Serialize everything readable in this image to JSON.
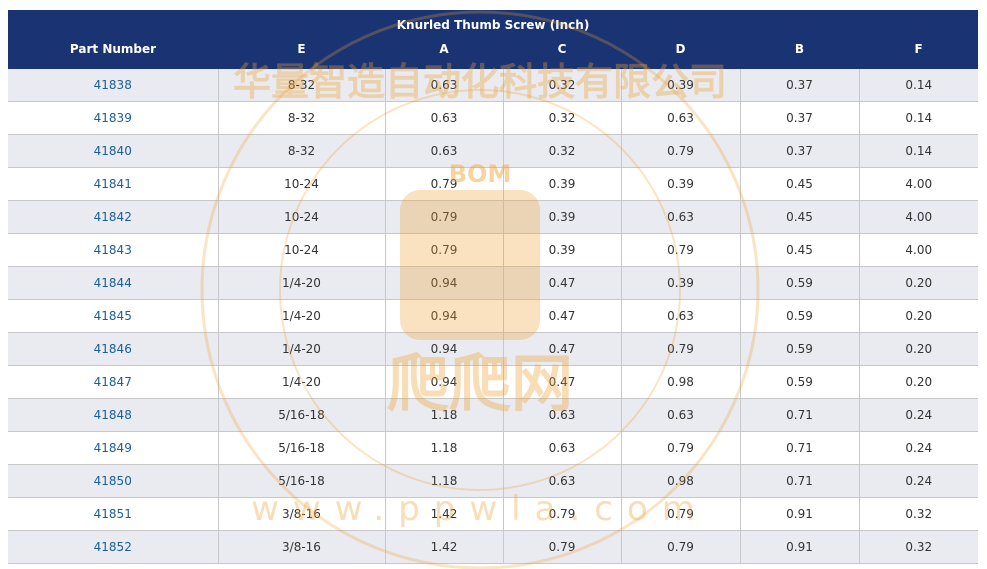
{
  "table": {
    "title": "Knurled Thumb Screw (Inch)",
    "columns": [
      "Part Number",
      "E",
      "A",
      "C",
      "D",
      "B",
      "F"
    ],
    "rows": [
      [
        "41838",
        "8-32",
        "0.63",
        "0.32",
        "0.39",
        "0.37",
        "0.14"
      ],
      [
        "41839",
        "8-32",
        "0.63",
        "0.32",
        "0.63",
        "0.37",
        "0.14"
      ],
      [
        "41840",
        "8-32",
        "0.63",
        "0.32",
        "0.79",
        "0.37",
        "0.14"
      ],
      [
        "41841",
        "10-24",
        "0.79",
        "0.39",
        "0.39",
        "0.45",
        "4.00"
      ],
      [
        "41842",
        "10-24",
        "0.79",
        "0.39",
        "0.63",
        "0.45",
        "4.00"
      ],
      [
        "41843",
        "10-24",
        "0.79",
        "0.39",
        "0.79",
        "0.45",
        "4.00"
      ],
      [
        "41844",
        "1/4-20",
        "0.94",
        "0.47",
        "0.39",
        "0.59",
        "0.20"
      ],
      [
        "41845",
        "1/4-20",
        "0.94",
        "0.47",
        "0.63",
        "0.59",
        "0.20"
      ],
      [
        "41846",
        "1/4-20",
        "0.94",
        "0.47",
        "0.79",
        "0.59",
        "0.20"
      ],
      [
        "41847",
        "1/4-20",
        "0.94",
        "0.47",
        "0.98",
        "0.59",
        "0.20"
      ],
      [
        "41848",
        "5/16-18",
        "1.18",
        "0.63",
        "0.63",
        "0.71",
        "0.24"
      ],
      [
        "41849",
        "5/16-18",
        "1.18",
        "0.63",
        "0.79",
        "0.71",
        "0.24"
      ],
      [
        "41850",
        "5/16-18",
        "1.18",
        "0.63",
        "0.98",
        "0.71",
        "0.24"
      ],
      [
        "41851",
        "3/8-16",
        "1.42",
        "0.79",
        "0.79",
        "0.91",
        "0.32"
      ],
      [
        "41852",
        "3/8-16",
        "1.42",
        "0.79",
        "0.79",
        "0.91",
        "0.32"
      ]
    ]
  },
  "watermark": {
    "company": "华量智造自动化科技有限公司",
    "logo_text": "BOM",
    "brand": "爬爬网",
    "url": "www.ppwla.com",
    "color": "#f0a030"
  }
}
